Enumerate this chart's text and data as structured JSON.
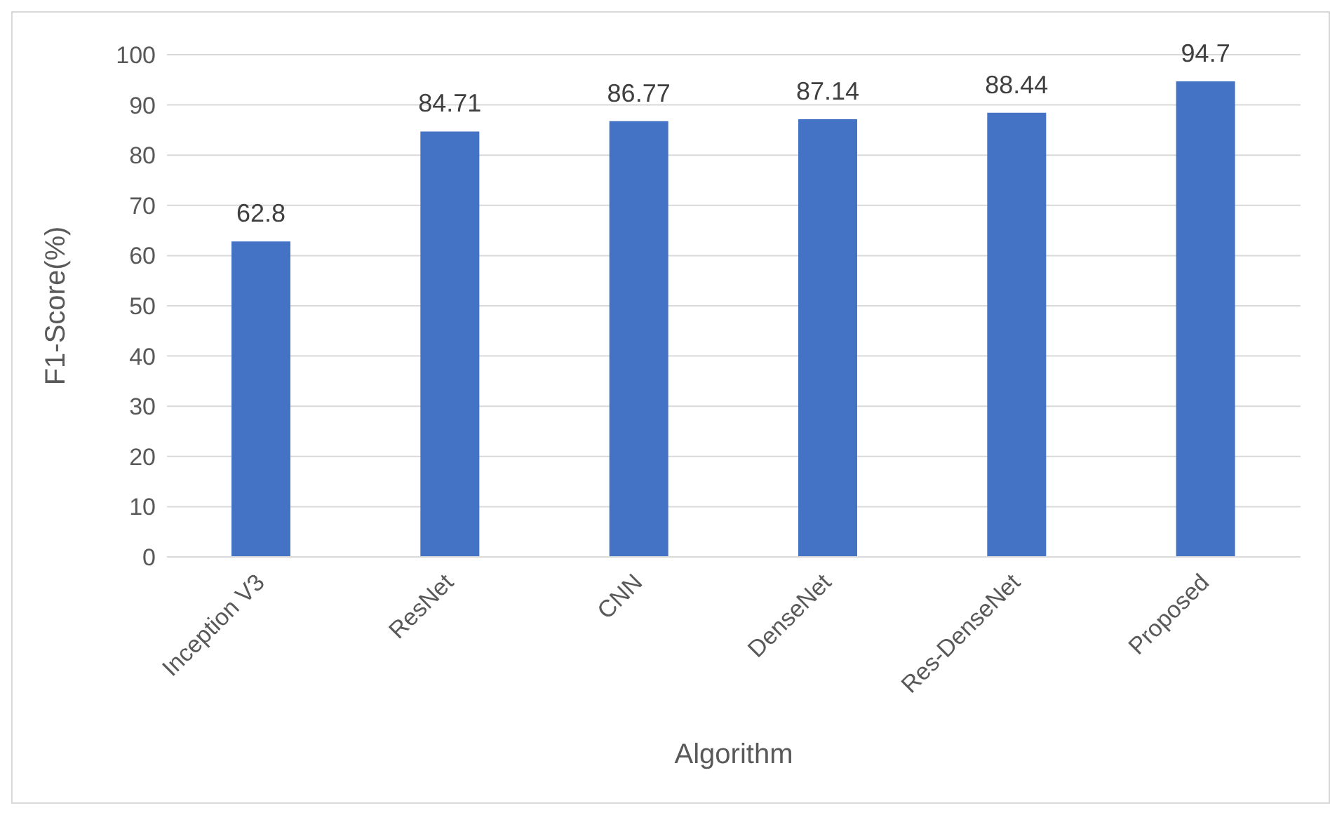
{
  "chart_data": {
    "type": "bar",
    "xlabel": "Algorithm",
    "ylabel": "F1-Score(%)",
    "categories": [
      "Inception V3",
      "ResNet",
      "CNN",
      "DenseNet",
      "Res-DenseNet",
      "Proposed"
    ],
    "values": [
      62.8,
      84.71,
      86.77,
      87.14,
      88.44,
      94.7
    ],
    "color": "#4472c4",
    "ylim": [
      0,
      100
    ],
    "yticks": [
      0,
      10,
      20,
      30,
      40,
      50,
      60,
      70,
      80,
      90,
      100
    ],
    "grid": "y",
    "data_labels": true
  }
}
